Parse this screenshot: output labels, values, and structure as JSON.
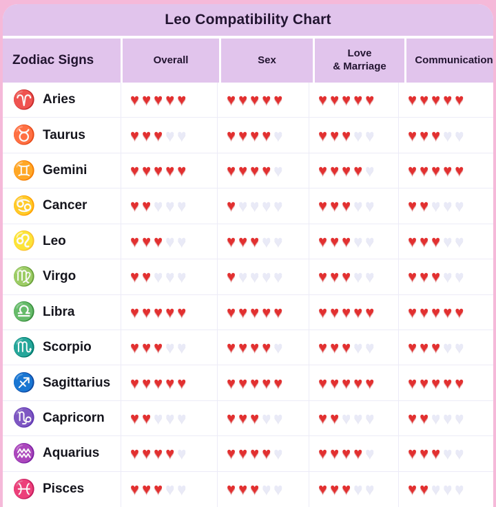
{
  "title": "Leo Compatibility Chart",
  "max_rating": 5,
  "heart_glyph": "♥",
  "colors": {
    "page_edge_pink": "#f5b9d9",
    "card_background": "#ffffff",
    "band_purple": "#e1c4ec",
    "text_dark": "#221430",
    "zodiac_icon_purple": "#9344b4",
    "heart_filled_red": "#e23030",
    "heart_empty_lavender": "#e9eaf7",
    "grid_line": "#ecebf7"
  },
  "table": {
    "columns": [
      {
        "key": "zodiac",
        "label": "Zodiac Signs"
      },
      {
        "key": "overall",
        "label": "Overall"
      },
      {
        "key": "sex",
        "label": "Sex"
      },
      {
        "key": "love_marriage",
        "label": "Love\n& Marriage"
      },
      {
        "key": "communication",
        "label": "Communication"
      }
    ],
    "rows": [
      {
        "sign": "Aries",
        "icon": "aries-icon",
        "glyph": "♈",
        "ratings": [
          5,
          5,
          5,
          5
        ]
      },
      {
        "sign": "Taurus",
        "icon": "taurus-icon",
        "glyph": "♉",
        "ratings": [
          3,
          4,
          3,
          3
        ]
      },
      {
        "sign": "Gemini",
        "icon": "gemini-icon",
        "glyph": "♊",
        "ratings": [
          5,
          4,
          4,
          5
        ]
      },
      {
        "sign": "Cancer",
        "icon": "cancer-icon",
        "glyph": "♋",
        "ratings": [
          2,
          1,
          3,
          2
        ]
      },
      {
        "sign": "Leo",
        "icon": "leo-icon",
        "glyph": "♌",
        "ratings": [
          3,
          3,
          3,
          3
        ]
      },
      {
        "sign": "Virgo",
        "icon": "virgo-icon",
        "glyph": "♍",
        "ratings": [
          2,
          1,
          3,
          3
        ]
      },
      {
        "sign": "Libra",
        "icon": "libra-icon",
        "glyph": "♎",
        "ratings": [
          5,
          5,
          5,
          5
        ]
      },
      {
        "sign": "Scorpio",
        "icon": "scorpio-icon",
        "glyph": "♏",
        "ratings": [
          3,
          4,
          3,
          3
        ]
      },
      {
        "sign": "Sagittarius",
        "icon": "sagittarius-icon",
        "glyph": "♐",
        "ratings": [
          5,
          5,
          5,
          5
        ]
      },
      {
        "sign": "Capricorn",
        "icon": "capricorn-icon",
        "glyph": "♑",
        "ratings": [
          2,
          3,
          2,
          2
        ]
      },
      {
        "sign": "Aquarius",
        "icon": "aquarius-icon",
        "glyph": "♒",
        "ratings": [
          4,
          4,
          4,
          3
        ]
      },
      {
        "sign": "Pisces",
        "icon": "pisces-icon",
        "glyph": "♓",
        "ratings": [
          3,
          3,
          3,
          2
        ]
      }
    ]
  },
  "chart_data": {
    "type": "table",
    "title": "Leo Compatibility Chart",
    "unit": "hearts out of 5",
    "categories": [
      "Overall",
      "Sex",
      "Love & Marriage",
      "Communication"
    ],
    "series": [
      {
        "name": "Aries",
        "values": [
          5,
          5,
          5,
          5
        ]
      },
      {
        "name": "Taurus",
        "values": [
          3,
          4,
          3,
          3
        ]
      },
      {
        "name": "Gemini",
        "values": [
          5,
          4,
          4,
          5
        ]
      },
      {
        "name": "Cancer",
        "values": [
          2,
          1,
          3,
          2
        ]
      },
      {
        "name": "Leo",
        "values": [
          3,
          3,
          3,
          3
        ]
      },
      {
        "name": "Virgo",
        "values": [
          2,
          1,
          3,
          3
        ]
      },
      {
        "name": "Libra",
        "values": [
          5,
          5,
          5,
          5
        ]
      },
      {
        "name": "Scorpio",
        "values": [
          3,
          4,
          3,
          3
        ]
      },
      {
        "name": "Sagittarius",
        "values": [
          5,
          5,
          5,
          5
        ]
      },
      {
        "name": "Capricorn",
        "values": [
          2,
          3,
          2,
          2
        ]
      },
      {
        "name": "Aquarius",
        "values": [
          4,
          4,
          4,
          3
        ]
      },
      {
        "name": "Pisces",
        "values": [
          3,
          3,
          3,
          2
        ]
      }
    ]
  }
}
